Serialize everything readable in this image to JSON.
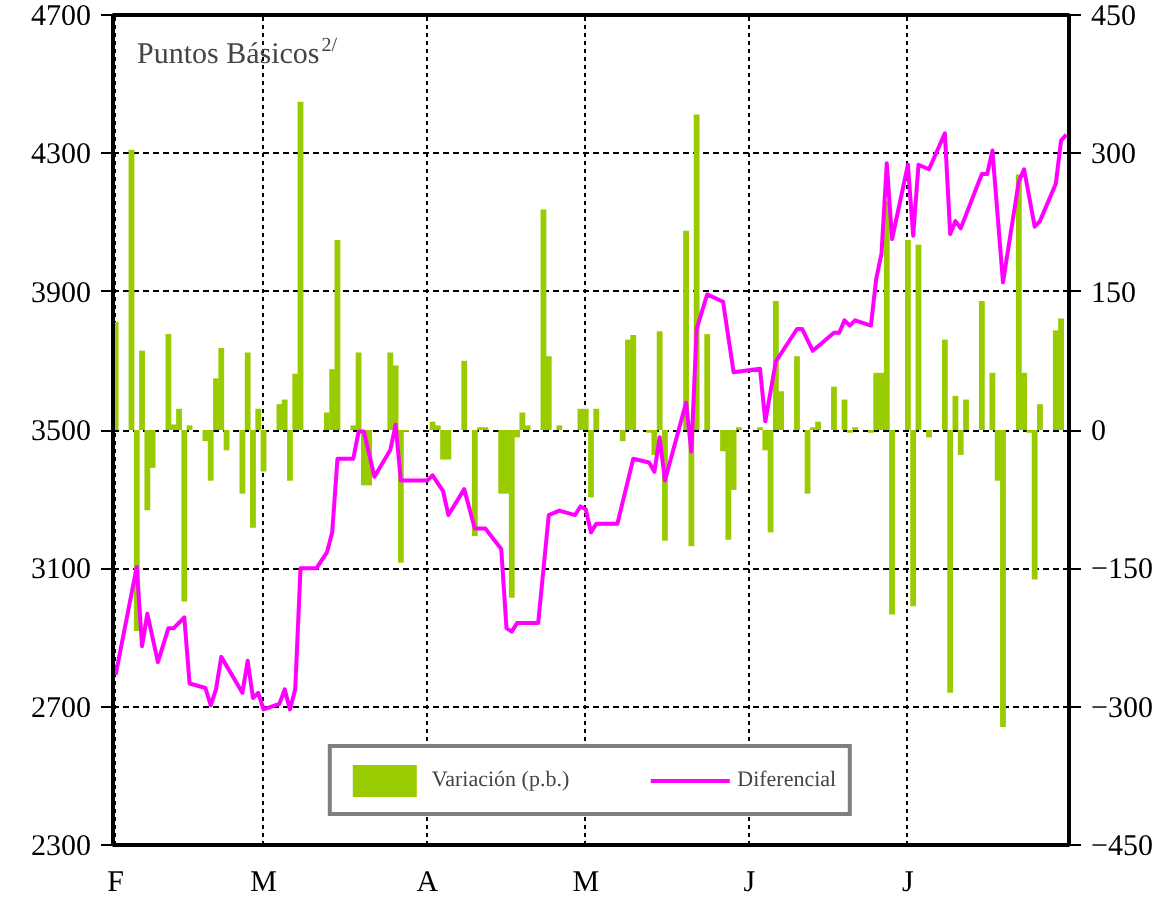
{
  "chart_data": {
    "type": "bar",
    "ylabel": "Puntos Básicos$^{2/}$",
    "categories": [
      "F",
      null,
      null,
      null,
      null,
      null,
      null,
      null,
      null,
      null,
      null,
      null,
      null,
      null,
      null,
      null,
      null,
      null,
      null,
      null,
      null,
      null,
      null,
      null,
      null,
      null,
      null,
      null,
      "M",
      null,
      null,
      null,
      null,
      null,
      null,
      null,
      null,
      null,
      null,
      null,
      null,
      null,
      null,
      null,
      null,
      null,
      null,
      null,
      null,
      null,
      null,
      null,
      null,
      null,
      null,
      null,
      null,
      null,
      null,
      "A",
      null,
      null,
      null,
      null,
      null,
      null,
      null,
      null,
      null,
      null,
      null,
      null,
      null,
      null,
      null,
      null,
      null,
      null,
      null,
      null,
      null,
      null,
      null,
      null,
      null,
      null,
      null,
      null,
      null,
      "M",
      null,
      null,
      null,
      null,
      null,
      null,
      null,
      null,
      null,
      null,
      null,
      null,
      null,
      null,
      null,
      null,
      null,
      null,
      null,
      null,
      null,
      null,
      null,
      null,
      null,
      null,
      null,
      null,
      null,
      null,
      "J",
      null,
      null,
      null,
      null,
      null,
      null,
      null,
      null,
      null,
      null,
      null,
      null,
      null,
      null,
      null,
      null,
      null,
      null,
      null,
      null,
      null,
      null,
      null,
      null,
      null,
      null,
      null,
      null,
      null,
      "J",
      null,
      null,
      null,
      null,
      null,
      null,
      null,
      null,
      null,
      null,
      null,
      null,
      null,
      null,
      null,
      null,
      null,
      null,
      null,
      null,
      null,
      null,
      null,
      null,
      null,
      null,
      null,
      null,
      null,
      null
    ],
    "ylim": [
      2300,
      4700
    ],
    "yticks": [
      2300,
      2700,
      3100,
      3500,
      3900,
      4300,
      4700
    ],
    "y2lim": [
      -450,
      450
    ],
    "y2ticks": [
      -450,
      -300,
      -150,
      0,
      150,
      300,
      450
    ],
    "grid": true,
    "legend": "bottom",
    "series": [
      {
        "name": "Variación (p.b.)",
        "axis": "y2",
        "color": "#99cc00",
        "values": [
          117,
          null,
          null,
          304,
          -218,
          86,
          -87,
          -41,
          null,
          null,
          104,
          6,
          23,
          -186,
          5,
          null,
          null,
          -12,
          -55,
          56,
          89,
          -22,
          null,
          null,
          -69,
          84,
          -106,
          23,
          -45,
          null,
          null,
          28,
          33,
          -55,
          61,
          356,
          null,
          null,
          null,
          null,
          19,
          66,
          206,
          null,
          null,
          5,
          84,
          -60,
          -60,
          null,
          null,
          null,
          84,
          70,
          -144,
          -2,
          null,
          null,
          null,
          null,
          9,
          5,
          -32,
          -32,
          null,
          null,
          75,
          null,
          -115,
          3,
          3,
          null,
          null,
          -69,
          -69,
          -182,
          -8,
          19,
          5,
          null,
          null,
          239,
          80,
          null,
          5,
          null,
          null,
          null,
          23,
          23,
          -73,
          23,
          null,
          null,
          null,
          null,
          -12,
          98,
          103,
          null,
          null,
          -3,
          -27,
          107,
          -120,
          null,
          null,
          null,
          216,
          -126,
          342,
          null,
          104,
          null,
          null,
          -23,
          -119,
          -65,
          3,
          null,
          null,
          null,
          3,
          -22,
          -111,
          140,
          42,
          null,
          null,
          80,
          null,
          -69,
          3,
          9,
          null,
          null,
          47,
          null,
          33,
          -3,
          3,
          null,
          null,
          -3,
          62,
          62,
          248,
          -200,
          null,
          null,
          206,
          -191,
          201,
          null,
          -8,
          null,
          null,
          98,
          -285,
          37,
          -27,
          33,
          null,
          null,
          140,
          null,
          62,
          -55,
          -322,
          null,
          null,
          277,
          62,
          -3,
          -162,
          28,
          null,
          null,
          108,
          121,
          null
        ]
      },
      {
        "name": "Diferencial",
        "type": "line",
        "color": "#ff00ff",
        "values": [
          2792,
          null,
          null,
          null,
          3104,
          2875,
          2969,
          null,
          2829,
          null,
          2927,
          2927,
          null,
          2958,
          2767,
          null,
          null,
          2754,
          2704,
          2750,
          2844,
          null,
          null,
          null,
          2740,
          2833,
          2725,
          2740,
          2692,
          null,
          null,
          2708,
          2750,
          2692,
          2750,
          3100,
          null,
          null,
          3100,
          null,
          3146,
          3204,
          3417,
          null,
          null,
          3417,
          3496,
          3496,
          null,
          3365,
          null,
          null,
          3442,
          3515,
          3354,
          null,
          null,
          null,
          null,
          3354,
          3369,
          null,
          3323,
          3254,
          null,
          null,
          3329,
          null,
          3215,
          null,
          3215,
          null,
          null,
          3156,
          2927,
          2917,
          2942,
          null,
          null,
          null,
          2942,
          null,
          3254,
          null,
          3267,
          null,
          null,
          3254,
          3279,
          3271,
          3204,
          3229,
          null,
          null,
          null,
          3229,
          null,
          null,
          3417,
          null,
          null,
          3406,
          3379,
          3479,
          3354,
          null,
          null,
          null,
          3579,
          3437,
          3792,
          null,
          3892,
          null,
          null,
          3871,
          null,
          3667,
          null,
          null,
          null,
          null,
          3677,
          3525,
          null,
          3698,
          null,
          null,
          null,
          3792,
          3792,
          null,
          3729,
          null,
          null,
          null,
          3781,
          3781,
          3817,
          3802,
          3817,
          null,
          null,
          3802,
          3937,
          4010,
          4271,
          4052,
          null,
          null,
          4267,
          4062,
          4267,
          null,
          4254,
          null,
          null,
          4358,
          4067,
          4104,
          4083,
          null,
          null,
          null,
          4240,
          4240,
          4308,
          null,
          3927,
          null,
          null,
          4219,
          4254,
          null,
          4088,
          4104,
          null,
          null,
          4212,
          4337,
          4354
        ]
      }
    ]
  }
}
